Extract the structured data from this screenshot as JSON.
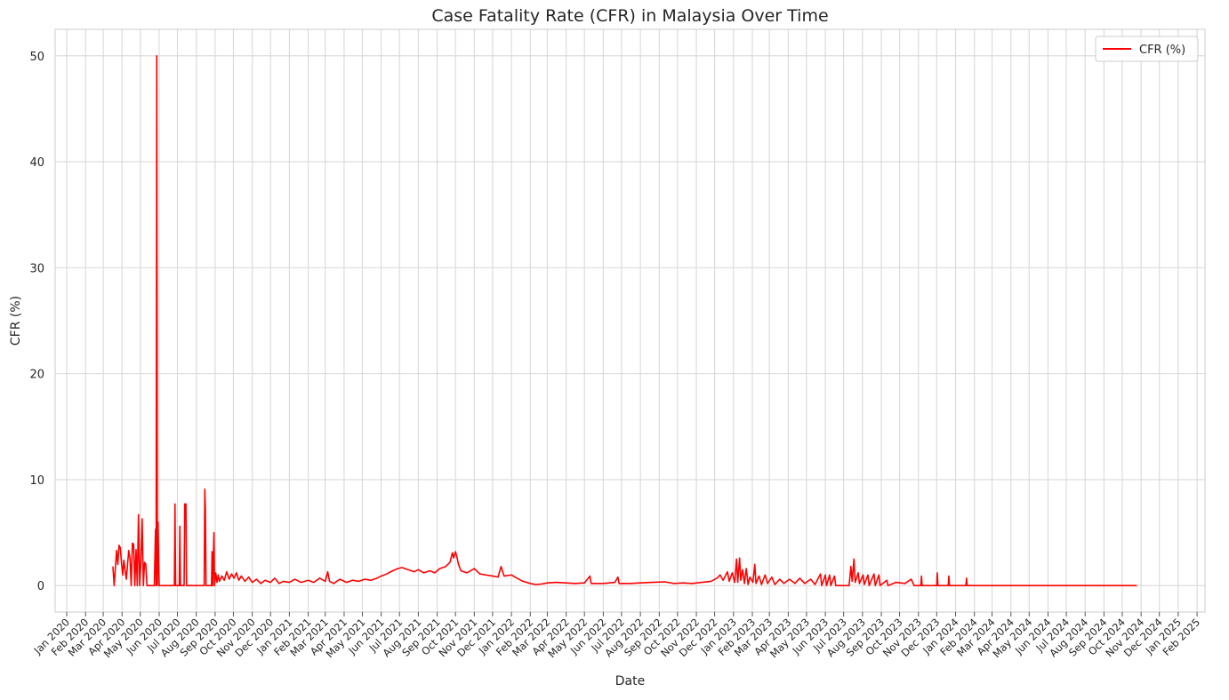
{
  "chart_data": {
    "type": "line",
    "title": "Case Fatality Rate (CFR) in Malaysia Over Time",
    "xlabel": "Date",
    "ylabel": "CFR (%)",
    "x_ticks": [
      "Jan 2020",
      "Feb 2020",
      "Mar 2020",
      "Apr 2020",
      "May 2020",
      "Jun 2020",
      "Jul 2020",
      "Aug 2020",
      "Sep 2020",
      "Oct 2020",
      "Nov 2020",
      "Dec 2020",
      "Jan 2021",
      "Feb 2021",
      "Mar 2021",
      "Apr 2021",
      "May 2021",
      "Jun 2021",
      "Jul 2021",
      "Aug 2021",
      "Sep 2021",
      "Oct 2021",
      "Nov 2021",
      "Dec 2021",
      "Jan 2022",
      "Feb 2022",
      "Mar 2022",
      "Apr 2022",
      "May 2022",
      "Jun 2022",
      "Jul 2022",
      "Aug 2022",
      "Sep 2022",
      "Oct 2022",
      "Nov 2022",
      "Dec 2022",
      "Jan 2023",
      "Feb 2023",
      "Mar 2023",
      "Apr 2023",
      "May 2023",
      "Jun 2023",
      "Jul 2023",
      "Aug 2023",
      "Sep 2023",
      "Oct 2023",
      "Nov 2023",
      "Dec 2023",
      "Jan 2024",
      "Feb 2024",
      "Mar 2024",
      "Apr 2024",
      "May 2024",
      "Jun 2024",
      "Jul 2024",
      "Aug 2024",
      "Sep 2024",
      "Oct 2024",
      "Nov 2024",
      "Dec 2024",
      "Jan 2025",
      "Feb 2025"
    ],
    "y_ticks": [
      0,
      10,
      20,
      30,
      40,
      50
    ],
    "ylim": [
      -2.5,
      52.5
    ],
    "xlim": [
      "2019-12-13",
      "2025-02-14"
    ],
    "grid": true,
    "legend_position": "top-right",
    "series": [
      {
        "name": "CFR (%)",
        "color": "#ff0000",
        "points": [
          [
            "2020-03-17",
            1.8
          ],
          [
            "2020-03-19",
            0.0
          ],
          [
            "2020-03-21",
            1.6
          ],
          [
            "2020-03-23",
            3.3
          ],
          [
            "2020-03-25",
            2.0
          ],
          [
            "2020-03-27",
            3.8
          ],
          [
            "2020-03-29",
            3.6
          ],
          [
            "2020-03-31",
            2.2
          ],
          [
            "2020-04-02",
            1.0
          ],
          [
            "2020-04-04",
            2.4
          ],
          [
            "2020-04-06",
            1.4
          ],
          [
            "2020-04-08",
            0.6
          ],
          [
            "2020-04-10",
            2.0
          ],
          [
            "2020-04-12",
            3.3
          ],
          [
            "2020-04-14",
            2.6
          ],
          [
            "2020-04-16",
            0.0
          ],
          [
            "2020-04-18",
            4.0
          ],
          [
            "2020-04-20",
            3.9
          ],
          [
            "2020-04-22",
            0.0
          ],
          [
            "2020-04-24",
            3.4
          ],
          [
            "2020-04-26",
            0.0
          ],
          [
            "2020-04-28",
            6.7
          ],
          [
            "2020-04-30",
            0.0
          ],
          [
            "2020-05-02",
            2.3
          ],
          [
            "2020-05-04",
            6.3
          ],
          [
            "2020-05-06",
            0.0
          ],
          [
            "2020-05-08",
            2.2
          ],
          [
            "2020-05-10",
            2.0
          ],
          [
            "2020-05-12",
            0.0
          ],
          [
            "2020-05-16",
            0.0
          ],
          [
            "2020-05-20",
            0.0
          ],
          [
            "2020-05-24",
            0.0
          ],
          [
            "2020-05-26",
            5.3
          ],
          [
            "2020-05-27",
            0.0
          ],
          [
            "2020-05-28",
            50.0
          ],
          [
            "2020-05-29",
            0.0
          ],
          [
            "2020-05-30",
            6.0
          ],
          [
            "2020-06-01",
            0.0
          ],
          [
            "2020-06-10",
            0.0
          ],
          [
            "2020-06-20",
            0.0
          ],
          [
            "2020-06-26",
            0.0
          ],
          [
            "2020-06-27",
            7.7
          ],
          [
            "2020-06-28",
            0.0
          ],
          [
            "2020-07-04",
            0.0
          ],
          [
            "2020-07-05",
            5.6
          ],
          [
            "2020-07-06",
            0.0
          ],
          [
            "2020-07-12",
            0.0
          ],
          [
            "2020-07-13",
            7.7
          ],
          [
            "2020-07-15",
            7.7
          ],
          [
            "2020-07-16",
            0.0
          ],
          [
            "2020-07-25",
            0.0
          ],
          [
            "2020-08-05",
            0.0
          ],
          [
            "2020-08-14",
            0.0
          ],
          [
            "2020-08-15",
            9.1
          ],
          [
            "2020-08-16",
            7.2
          ],
          [
            "2020-08-17",
            0.0
          ],
          [
            "2020-08-26",
            0.0
          ],
          [
            "2020-08-27",
            3.2
          ],
          [
            "2020-08-28",
            0.0
          ],
          [
            "2020-08-30",
            5.0
          ],
          [
            "2020-08-31",
            0.0
          ],
          [
            "2020-09-02",
            1.2
          ],
          [
            "2020-09-04",
            0.3
          ],
          [
            "2020-09-06",
            1.0
          ],
          [
            "2020-09-08",
            0.4
          ],
          [
            "2020-09-12",
            0.9
          ],
          [
            "2020-09-16",
            0.5
          ],
          [
            "2020-09-20",
            1.3
          ],
          [
            "2020-09-24",
            0.6
          ],
          [
            "2020-09-28",
            1.1
          ],
          [
            "2020-10-02",
            0.7
          ],
          [
            "2020-10-06",
            1.2
          ],
          [
            "2020-10-10",
            0.5
          ],
          [
            "2020-10-14",
            0.9
          ],
          [
            "2020-10-20",
            0.4
          ],
          [
            "2020-10-26",
            0.8
          ],
          [
            "2020-11-01",
            0.3
          ],
          [
            "2020-11-08",
            0.6
          ],
          [
            "2020-11-15",
            0.2
          ],
          [
            "2020-11-22",
            0.5
          ],
          [
            "2020-12-01",
            0.3
          ],
          [
            "2020-12-08",
            0.7
          ],
          [
            "2020-12-15",
            0.2
          ],
          [
            "2020-12-22",
            0.4
          ],
          [
            "2021-01-01",
            0.3
          ],
          [
            "2021-01-10",
            0.6
          ],
          [
            "2021-01-20",
            0.3
          ],
          [
            "2021-02-01",
            0.5
          ],
          [
            "2021-02-10",
            0.3
          ],
          [
            "2021-02-20",
            0.7
          ],
          [
            "2021-03-01",
            0.4
          ],
          [
            "2021-03-05",
            1.3
          ],
          [
            "2021-03-08",
            0.4
          ],
          [
            "2021-03-15",
            0.2
          ],
          [
            "2021-03-25",
            0.6
          ],
          [
            "2021-04-05",
            0.3
          ],
          [
            "2021-04-15",
            0.5
          ],
          [
            "2021-04-25",
            0.4
          ],
          [
            "2021-05-05",
            0.6
          ],
          [
            "2021-05-15",
            0.5
          ],
          [
            "2021-05-25",
            0.7
          ],
          [
            "2021-06-01",
            0.9
          ],
          [
            "2021-06-10",
            1.1
          ],
          [
            "2021-06-20",
            1.4
          ],
          [
            "2021-06-28",
            1.6
          ],
          [
            "2021-07-05",
            1.7
          ],
          [
            "2021-07-15",
            1.5
          ],
          [
            "2021-07-25",
            1.3
          ],
          [
            "2021-08-01",
            1.5
          ],
          [
            "2021-08-10",
            1.2
          ],
          [
            "2021-08-20",
            1.4
          ],
          [
            "2021-08-28",
            1.2
          ],
          [
            "2021-09-05",
            1.6
          ],
          [
            "2021-09-15",
            1.8
          ],
          [
            "2021-09-22",
            2.2
          ],
          [
            "2021-09-26",
            3.1
          ],
          [
            "2021-09-28",
            2.6
          ],
          [
            "2021-10-01",
            3.2
          ],
          [
            "2021-10-03",
            2.8
          ],
          [
            "2021-10-06",
            2.0
          ],
          [
            "2021-10-10",
            1.4
          ],
          [
            "2021-10-20",
            1.2
          ],
          [
            "2021-11-01",
            1.6
          ],
          [
            "2021-11-10",
            1.1
          ],
          [
            "2021-11-20",
            1.0
          ],
          [
            "2021-12-01",
            0.9
          ],
          [
            "2021-12-10",
            0.8
          ],
          [
            "2021-12-15",
            1.8
          ],
          [
            "2021-12-20",
            0.9
          ],
          [
            "2022-01-01",
            1.0
          ],
          [
            "2022-01-10",
            0.7
          ],
          [
            "2022-01-20",
            0.4
          ],
          [
            "2022-02-01",
            0.2
          ],
          [
            "2022-02-10",
            0.1
          ],
          [
            "2022-02-20",
            0.15
          ],
          [
            "2022-03-01",
            0.25
          ],
          [
            "2022-03-15",
            0.3
          ],
          [
            "2022-04-01",
            0.25
          ],
          [
            "2022-04-15",
            0.2
          ],
          [
            "2022-05-01",
            0.25
          ],
          [
            "2022-05-10",
            0.9
          ],
          [
            "2022-05-12",
            0.2
          ],
          [
            "2022-06-01",
            0.2
          ],
          [
            "2022-06-20",
            0.3
          ],
          [
            "2022-06-25",
            0.8
          ],
          [
            "2022-06-27",
            0.2
          ],
          [
            "2022-07-15",
            0.2
          ],
          [
            "2022-08-01",
            0.25
          ],
          [
            "2022-08-20",
            0.3
          ],
          [
            "2022-09-10",
            0.35
          ],
          [
            "2022-09-25",
            0.2
          ],
          [
            "2022-10-10",
            0.25
          ],
          [
            "2022-10-25",
            0.2
          ],
          [
            "2022-11-10",
            0.3
          ],
          [
            "2022-11-25",
            0.4
          ],
          [
            "2022-12-05",
            0.7
          ],
          [
            "2022-12-10",
            1.0
          ],
          [
            "2022-12-15",
            0.5
          ],
          [
            "2022-12-22",
            1.3
          ],
          [
            "2022-12-25",
            0.4
          ],
          [
            "2022-12-30",
            1.2
          ],
          [
            "2023-01-03",
            0.3
          ],
          [
            "2023-01-06",
            2.5
          ],
          [
            "2023-01-08",
            0.3
          ],
          [
            "2023-01-11",
            2.6
          ],
          [
            "2023-01-13",
            0.5
          ],
          [
            "2023-01-16",
            1.5
          ],
          [
            "2023-01-19",
            0.2
          ],
          [
            "2023-01-22",
            1.6
          ],
          [
            "2023-01-25",
            0.1
          ],
          [
            "2023-01-28",
            0.8
          ],
          [
            "2023-02-02",
            0.3
          ],
          [
            "2023-02-05",
            2.0
          ],
          [
            "2023-02-07",
            0.2
          ],
          [
            "2023-02-12",
            0.9
          ],
          [
            "2023-02-16",
            0.1
          ],
          [
            "2023-02-22",
            1.0
          ],
          [
            "2023-02-26",
            0.2
          ],
          [
            "2023-03-05",
            0.8
          ],
          [
            "2023-03-10",
            0.1
          ],
          [
            "2023-03-18",
            0.6
          ],
          [
            "2023-03-25",
            0.2
          ],
          [
            "2023-04-03",
            0.6
          ],
          [
            "2023-04-12",
            0.2
          ],
          [
            "2023-04-20",
            0.7
          ],
          [
            "2023-04-28",
            0.2
          ],
          [
            "2023-05-08",
            0.6
          ],
          [
            "2023-05-15",
            0.1
          ],
          [
            "2023-05-24",
            1.1
          ],
          [
            "2023-05-26",
            0.0
          ],
          [
            "2023-06-01",
            1.0
          ],
          [
            "2023-06-03",
            0.0
          ],
          [
            "2023-06-08",
            1.0
          ],
          [
            "2023-06-10",
            0.0
          ],
          [
            "2023-06-16",
            0.9
          ],
          [
            "2023-06-18",
            0.0
          ],
          [
            "2023-07-10",
            0.0
          ],
          [
            "2023-07-13",
            1.8
          ],
          [
            "2023-07-15",
            0.4
          ],
          [
            "2023-07-18",
            2.5
          ],
          [
            "2023-07-20",
            0.3
          ],
          [
            "2023-07-25",
            1.2
          ],
          [
            "2023-07-27",
            0.2
          ],
          [
            "2023-08-02",
            1.0
          ],
          [
            "2023-08-04",
            0.1
          ],
          [
            "2023-08-10",
            1.0
          ],
          [
            "2023-08-12",
            0.0
          ],
          [
            "2023-08-20",
            1.1
          ],
          [
            "2023-08-22",
            0.0
          ],
          [
            "2023-08-28",
            1.0
          ],
          [
            "2023-08-30",
            0.0
          ],
          [
            "2023-09-10",
            0.5
          ],
          [
            "2023-09-12",
            0.0
          ],
          [
            "2023-09-25",
            0.3
          ],
          [
            "2023-10-10",
            0.2
          ],
          [
            "2023-10-20",
            0.6
          ],
          [
            "2023-10-25",
            0.0
          ],
          [
            "2023-11-05",
            0.0
          ],
          [
            "2023-11-06",
            0.9
          ],
          [
            "2023-11-07",
            0.0
          ],
          [
            "2023-12-01",
            0.0
          ],
          [
            "2023-12-02",
            1.2
          ],
          [
            "2023-12-03",
            0.0
          ],
          [
            "2023-12-20",
            0.0
          ],
          [
            "2023-12-21",
            0.9
          ],
          [
            "2023-12-22",
            0.0
          ],
          [
            "2024-01-18",
            0.0
          ],
          [
            "2024-01-19",
            0.7
          ],
          [
            "2024-01-20",
            0.0
          ],
          [
            "2024-10-25",
            0.0
          ]
        ]
      }
    ]
  }
}
